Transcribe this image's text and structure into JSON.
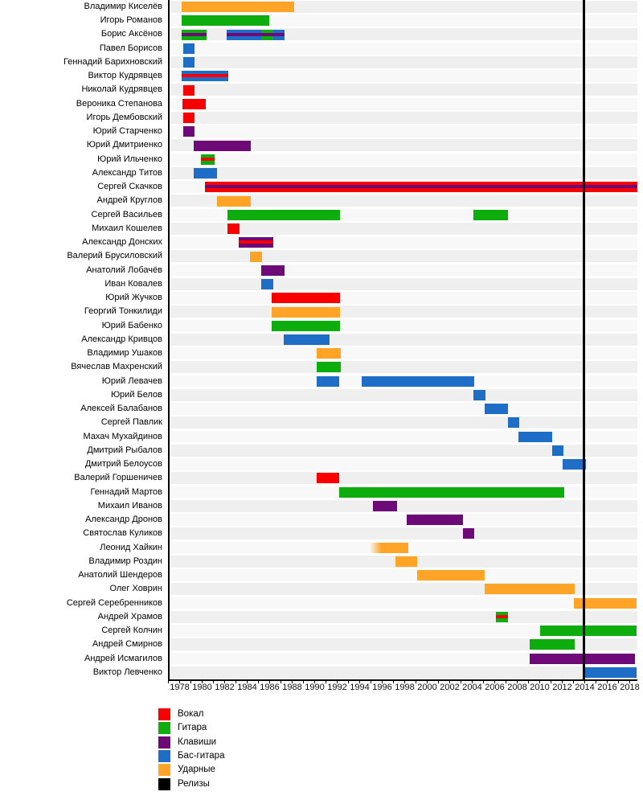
{
  "chart_data": {
    "type": "timeline_gantt",
    "description": "Band membership timeline (Gantt-style) with roles by color",
    "x_axis": {
      "year_min": 1977.0,
      "year_max": 2018.7,
      "tick_label_years": [
        1978,
        1980,
        1982,
        1984,
        1986,
        1988,
        1990,
        1992,
        1994,
        1996,
        1998,
        2000,
        2002,
        2004,
        2006,
        2008,
        2010,
        2012,
        2014,
        2016,
        2018
      ],
      "minor_tick_start": 1977,
      "minor_tick_end": 2018
    },
    "colors": {
      "vocals": "#f80000",
      "guitar": "#0cad0c",
      "keys": "#6e0a78",
      "bass": "#1e6ec8",
      "drums": "#ffa427",
      "releases": "#000000"
    },
    "legend": [
      {
        "label": "Вокал",
        "role": "vocals"
      },
      {
        "label": "Гитара",
        "role": "guitar"
      },
      {
        "label": "Клавиши",
        "role": "keys"
      },
      {
        "label": "Бас-гитара",
        "role": "bass"
      },
      {
        "label": "Ударные",
        "role": "drums"
      },
      {
        "label": "Релизы",
        "role": "releases"
      }
    ],
    "release_lines": [
      2013.9
    ],
    "rows": [
      {
        "name": "Владимир Киселёв",
        "bars": [
          {
            "start": 1978.2,
            "end": 1988.2,
            "role": "drums"
          }
        ]
      },
      {
        "name": "Игорь Романов",
        "bars": [
          {
            "start": 1978.2,
            "end": 1986.0,
            "role": "guitar"
          }
        ]
      },
      {
        "name": "Борис Аксёнов",
        "bars": [
          {
            "start": 1978.2,
            "end": 1980.4,
            "role": "guitar",
            "stripe": "keys"
          },
          {
            "start": 1982.2,
            "end": 1987.3,
            "role": "bass",
            "stripe": "keys",
            "overlay": {
              "start": 1985.25,
              "end": 1986.3,
              "role": "guitar"
            }
          }
        ]
      },
      {
        "name": "Павел Борисов",
        "bars": [
          {
            "start": 1978.3,
            "end": 1979.3,
            "role": "bass"
          }
        ]
      },
      {
        "name": "Геннадий Барихновский",
        "bars": [
          {
            "start": 1978.3,
            "end": 1979.3,
            "role": "bass"
          }
        ]
      },
      {
        "name": "Виктор Кудрявцев",
        "bars": [
          {
            "start": 1978.2,
            "end": 1982.3,
            "role": "bass",
            "stripe": "vocals"
          }
        ]
      },
      {
        "name": "Николай Кудрявцев",
        "bars": [
          {
            "start": 1978.3,
            "end": 1979.3,
            "role": "vocals"
          }
        ]
      },
      {
        "name": "Вероника Степанова",
        "bars": [
          {
            "start": 1978.25,
            "end": 1980.3,
            "role": "vocals"
          }
        ]
      },
      {
        "name": "Игорь Дембовский",
        "bars": [
          {
            "start": 1978.3,
            "end": 1979.3,
            "role": "vocals"
          }
        ]
      },
      {
        "name": "Юрий Старченко",
        "bars": [
          {
            "start": 1978.3,
            "end": 1979.3,
            "role": "keys"
          }
        ]
      },
      {
        "name": "Юрий Дмитриенко",
        "bars": [
          {
            "start": 1979.25,
            "end": 1984.3,
            "role": "keys"
          }
        ]
      },
      {
        "name": "Юрий Ильченко",
        "bars": [
          {
            "start": 1979.9,
            "end": 1981.1,
            "role": "guitar",
            "stripe": "vocals"
          }
        ]
      },
      {
        "name": "Александр Титов",
        "bars": [
          {
            "start": 1979.25,
            "end": 1981.3,
            "role": "bass"
          }
        ]
      },
      {
        "name": "Сергей Скачков",
        "bars": [
          {
            "start": 1980.25,
            "end": 2018.7,
            "role": "vocals",
            "stripe": "keys"
          }
        ]
      },
      {
        "name": "Андрей Круглов",
        "bars": [
          {
            "start": 1981.3,
            "end": 1984.3,
            "role": "drums"
          }
        ]
      },
      {
        "name": "Сергей Васильев",
        "bars": [
          {
            "start": 1982.25,
            "end": 1992.25,
            "role": "guitar"
          },
          {
            "start": 2004.1,
            "end": 2007.2,
            "role": "guitar"
          }
        ]
      },
      {
        "name": "Михаил Кошелев",
        "bars": [
          {
            "start": 1982.25,
            "end": 1983.3,
            "role": "vocals"
          }
        ]
      },
      {
        "name": "Александр Донских",
        "bars": [
          {
            "start": 1983.25,
            "end": 1986.3,
            "role": "keys",
            "stripe": "vocals"
          }
        ]
      },
      {
        "name": "Валерий Брусиловский",
        "bars": [
          {
            "start": 1984.25,
            "end": 1985.3,
            "role": "drums"
          }
        ]
      },
      {
        "name": "Анатолий Лобачёв",
        "bars": [
          {
            "start": 1985.25,
            "end": 1987.3,
            "role": "keys"
          }
        ]
      },
      {
        "name": "Иван Ковалев",
        "bars": [
          {
            "start": 1985.25,
            "end": 1986.3,
            "role": "bass"
          }
        ]
      },
      {
        "name": "Юрий Жучков",
        "bars": [
          {
            "start": 1986.2,
            "end": 1992.25,
            "role": "vocals"
          }
        ]
      },
      {
        "name": "Георгий Тонкилиди",
        "bars": [
          {
            "start": 1986.2,
            "end": 1992.25,
            "role": "drums"
          }
        ]
      },
      {
        "name": "Юрий Бабенко",
        "bars": [
          {
            "start": 1986.2,
            "end": 1992.25,
            "role": "guitar"
          }
        ]
      },
      {
        "name": "Александр Кривцов",
        "bars": [
          {
            "start": 1987.25,
            "end": 1991.3,
            "role": "bass"
          }
        ]
      },
      {
        "name": "Владимир Ушаков",
        "bars": [
          {
            "start": 1990.2,
            "end": 1992.3,
            "role": "drums"
          }
        ]
      },
      {
        "name": "Вячеслав Махренский",
        "bars": [
          {
            "start": 1990.2,
            "end": 1992.3,
            "role": "guitar"
          }
        ]
      },
      {
        "name": "Юрий Левачев",
        "bars": [
          {
            "start": 1990.2,
            "end": 1992.2,
            "role": "bass"
          },
          {
            "start": 1994.2,
            "end": 2004.2,
            "role": "bass"
          }
        ]
      },
      {
        "name": "Юрий Белов",
        "bars": [
          {
            "start": 2004.1,
            "end": 2005.2,
            "role": "bass"
          }
        ]
      },
      {
        "name": "Алексей Балабанов",
        "bars": [
          {
            "start": 2005.1,
            "end": 2007.2,
            "role": "bass"
          }
        ]
      },
      {
        "name": "Сергей Павлик",
        "bars": [
          {
            "start": 2007.2,
            "end": 2008.2,
            "role": "bass"
          }
        ]
      },
      {
        "name": "Махач Мухайдинов",
        "bars": [
          {
            "start": 2008.1,
            "end": 2011.1,
            "role": "bass"
          }
        ]
      },
      {
        "name": "Дмитрий Рыбалов",
        "bars": [
          {
            "start": 2011.1,
            "end": 2012.1,
            "role": "bass"
          }
        ]
      },
      {
        "name": "Дмитрий Белоусов",
        "bars": [
          {
            "start": 2012.0,
            "end": 2014.1,
            "role": "bass"
          }
        ]
      },
      {
        "name": "Валерий Горшеничев",
        "bars": [
          {
            "start": 1990.2,
            "end": 1992.2,
            "role": "vocals"
          }
        ]
      },
      {
        "name": "Геннадий Мартов",
        "bars": [
          {
            "start": 1992.2,
            "end": 2012.2,
            "role": "guitar"
          }
        ]
      },
      {
        "name": "Михаил Иванов",
        "bars": [
          {
            "start": 1995.2,
            "end": 1997.3,
            "role": "keys"
          }
        ]
      },
      {
        "name": "Александр Дронов",
        "bars": [
          {
            "start": 1998.2,
            "end": 2003.2,
            "role": "keys"
          }
        ]
      },
      {
        "name": "Святослав Куликов",
        "bars": [
          {
            "start": 2003.2,
            "end": 2004.2,
            "role": "keys"
          }
        ]
      },
      {
        "name": "Леонид Хайкин",
        "bars": [
          {
            "start": 1994.9,
            "end": 1998.3,
            "role": "drums",
            "fade_in": true
          }
        ]
      },
      {
        "name": "Владимир Роздин",
        "bars": [
          {
            "start": 1997.2,
            "end": 1999.1,
            "role": "drums"
          }
        ]
      },
      {
        "name": "Анатолий Шендеров",
        "bars": [
          {
            "start": 1999.1,
            "end": 2005.1,
            "role": "drums"
          }
        ]
      },
      {
        "name": "Олег Ховрин",
        "bars": [
          {
            "start": 2005.1,
            "end": 2013.1,
            "role": "drums"
          }
        ]
      },
      {
        "name": "Сергей Серебренников",
        "bars": [
          {
            "start": 2013.0,
            "end": 2018.6,
            "role": "drums"
          }
        ]
      },
      {
        "name": "Андрей Храмов",
        "bars": [
          {
            "start": 2006.1,
            "end": 2007.2,
            "role": "guitar",
            "stripe": "vocals"
          }
        ]
      },
      {
        "name": "Сергей Колчин",
        "bars": [
          {
            "start": 2010.0,
            "end": 2018.6,
            "role": "guitar"
          }
        ]
      },
      {
        "name": "Андрей Смирнов",
        "bars": [
          {
            "start": 2009.1,
            "end": 2013.1,
            "role": "guitar"
          }
        ]
      },
      {
        "name": "Андрей Исмагилов",
        "bars": [
          {
            "start": 2009.1,
            "end": 2018.5,
            "role": "keys"
          }
        ]
      },
      {
        "name": "Виктор Левченко",
        "bars": [
          {
            "start": 2014.0,
            "end": 2018.6,
            "role": "bass"
          }
        ]
      }
    ]
  }
}
